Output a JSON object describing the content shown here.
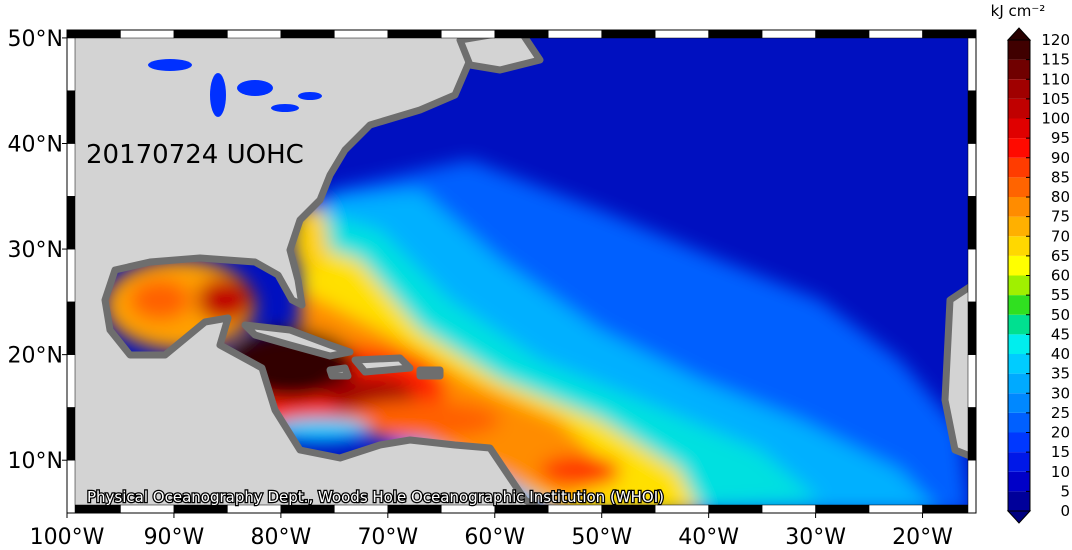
{
  "map": {
    "label": "20170724 UOHC",
    "credit": "Physical Oceanography Dept., Woods Hole Oceanographic Institution (WHOI)",
    "lon_range": [
      -100,
      -15
    ],
    "lat_range": [
      5,
      50.75
    ],
    "lon_ticks": [
      {
        "value": -100,
        "label": "100°W"
      },
      {
        "value": -90,
        "label": "90°W"
      },
      {
        "value": -80,
        "label": "80°W"
      },
      {
        "value": -70,
        "label": "70°W"
      },
      {
        "value": -60,
        "label": "60°W"
      },
      {
        "value": -50,
        "label": "50°W"
      },
      {
        "value": -40,
        "label": "40°W"
      },
      {
        "value": -30,
        "label": "30°W"
      },
      {
        "value": -20,
        "label": "20°W"
      }
    ],
    "lat_ticks": [
      {
        "value": 10,
        "label": "10°N"
      },
      {
        "value": 20,
        "label": "20°N"
      },
      {
        "value": 30,
        "label": "30°N"
      },
      {
        "value": 40,
        "label": "40°N"
      },
      {
        "value": 50,
        "label": "50°N"
      }
    ],
    "colorbar": {
      "unit": "kJ cm⁻²",
      "ticks": [
        0,
        5,
        10,
        15,
        20,
        25,
        30,
        35,
        40,
        45,
        50,
        55,
        60,
        65,
        70,
        75,
        80,
        85,
        90,
        95,
        100,
        105,
        110,
        115,
        120
      ],
      "colors": [
        "#00009a",
        "#0000c8",
        "#0018e8",
        "#0038ff",
        "#0060ff",
        "#0088ff",
        "#00aaff",
        "#00ccff",
        "#00eeee",
        "#00e090",
        "#30e020",
        "#a0f000",
        "#ffff00",
        "#ffd800",
        "#ffb000",
        "#ff8c00",
        "#ff6400",
        "#ff3c00",
        "#ff0a00",
        "#e00000",
        "#c00000",
        "#a00000",
        "#700000",
        "#400000"
      ],
      "under_color": "#000080",
      "over_color": "#280000"
    }
  }
}
